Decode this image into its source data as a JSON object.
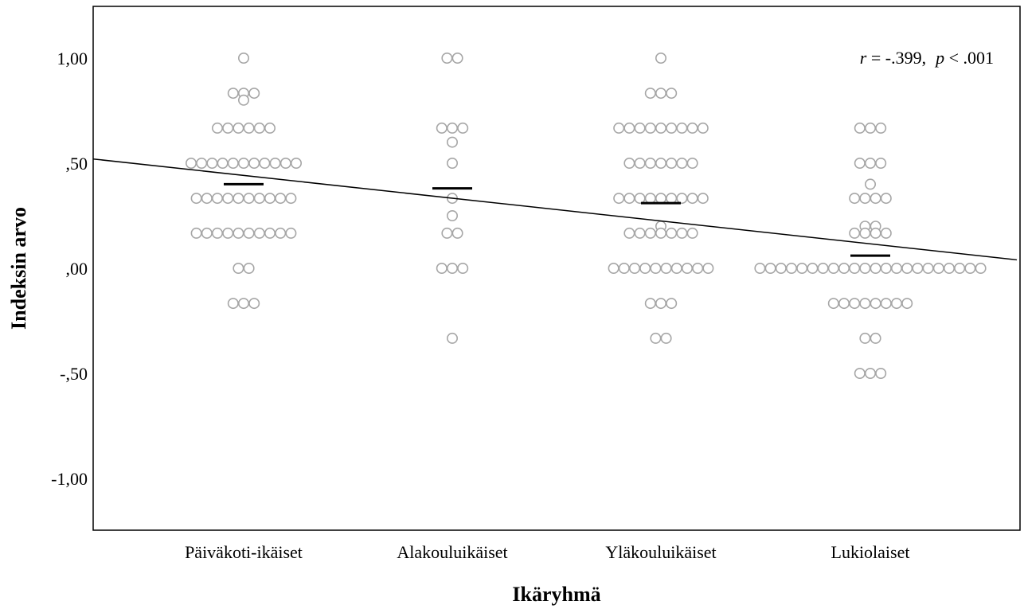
{
  "chart_data": {
    "type": "scatter",
    "subtype": "dot-plot",
    "title": "",
    "xlabel": "Ikäryhmä",
    "ylabel": "Indeksin arvo",
    "ylim": [
      -1.25,
      1.25
    ],
    "ytick_values": [
      1.0,
      0.5,
      0.0,
      -0.5,
      -1.0
    ],
    "ytick_labels": [
      "1,00",
      ",50",
      ",00",
      "-,50",
      "-1,00"
    ],
    "categories": [
      "Päiväkoti-ikäiset",
      "Alakouluikäiset",
      "Yläkouluikäiset",
      "Lukiolaiset"
    ],
    "groups": [
      {
        "category": "Päiväkoti-ikäiset",
        "points": [
          {
            "y": 1.0,
            "n": 1
          },
          {
            "y": 0.833,
            "n": 3
          },
          {
            "y": 0.8,
            "n": 1
          },
          {
            "y": 0.667,
            "n": 6
          },
          {
            "y": 0.5,
            "n": 11
          },
          {
            "y": 0.333,
            "n": 10
          },
          {
            "y": 0.167,
            "n": 10
          },
          {
            "y": 0.0,
            "n": 2
          },
          {
            "y": -0.167,
            "n": 3
          }
        ],
        "mean": 0.4
      },
      {
        "category": "Alakouluikäiset",
        "points": [
          {
            "y": 1.0,
            "n": 2
          },
          {
            "y": 0.667,
            "n": 3
          },
          {
            "y": 0.6,
            "n": 1
          },
          {
            "y": 0.5,
            "n": 1
          },
          {
            "y": 0.333,
            "n": 1
          },
          {
            "y": 0.25,
            "n": 1
          },
          {
            "y": 0.167,
            "n": 2
          },
          {
            "y": 0.0,
            "n": 3
          },
          {
            "y": -0.333,
            "n": 1
          }
        ],
        "mean": 0.38
      },
      {
        "category": "Yläkouluikäiset",
        "points": [
          {
            "y": 1.0,
            "n": 1
          },
          {
            "y": 0.833,
            "n": 3
          },
          {
            "y": 0.667,
            "n": 9
          },
          {
            "y": 0.5,
            "n": 7
          },
          {
            "y": 0.333,
            "n": 9
          },
          {
            "y": 0.2,
            "n": 1
          },
          {
            "y": 0.167,
            "n": 7
          },
          {
            "y": 0.0,
            "n": 10
          },
          {
            "y": -0.167,
            "n": 3
          },
          {
            "y": -0.333,
            "n": 2
          }
        ],
        "mean": 0.31
      },
      {
        "category": "Lukiolaiset",
        "points": [
          {
            "y": 0.667,
            "n": 3
          },
          {
            "y": 0.5,
            "n": 3
          },
          {
            "y": 0.4,
            "n": 1
          },
          {
            "y": 0.333,
            "n": 4
          },
          {
            "y": 0.2,
            "n": 2
          },
          {
            "y": 0.167,
            "n": 4
          },
          {
            "y": 0.0,
            "n": 22
          },
          {
            "y": -0.167,
            "n": 8
          },
          {
            "y": -0.333,
            "n": 2
          },
          {
            "y": -0.5,
            "n": 3
          }
        ],
        "mean": 0.06
      }
    ],
    "trend_line": {
      "y_at_left_edge": 0.52,
      "y_at_right_edge": 0.04
    },
    "annotation": {
      "r_symbol": "r",
      "r_value": " = -.399,",
      "p_symbol": "p",
      "p_value": " < .001"
    },
    "grid": false,
    "colors": {
      "marker_stroke": "#a6a6a6",
      "mean_bar": "#000000",
      "trend_line": "#000000",
      "frame": "#000000"
    }
  }
}
